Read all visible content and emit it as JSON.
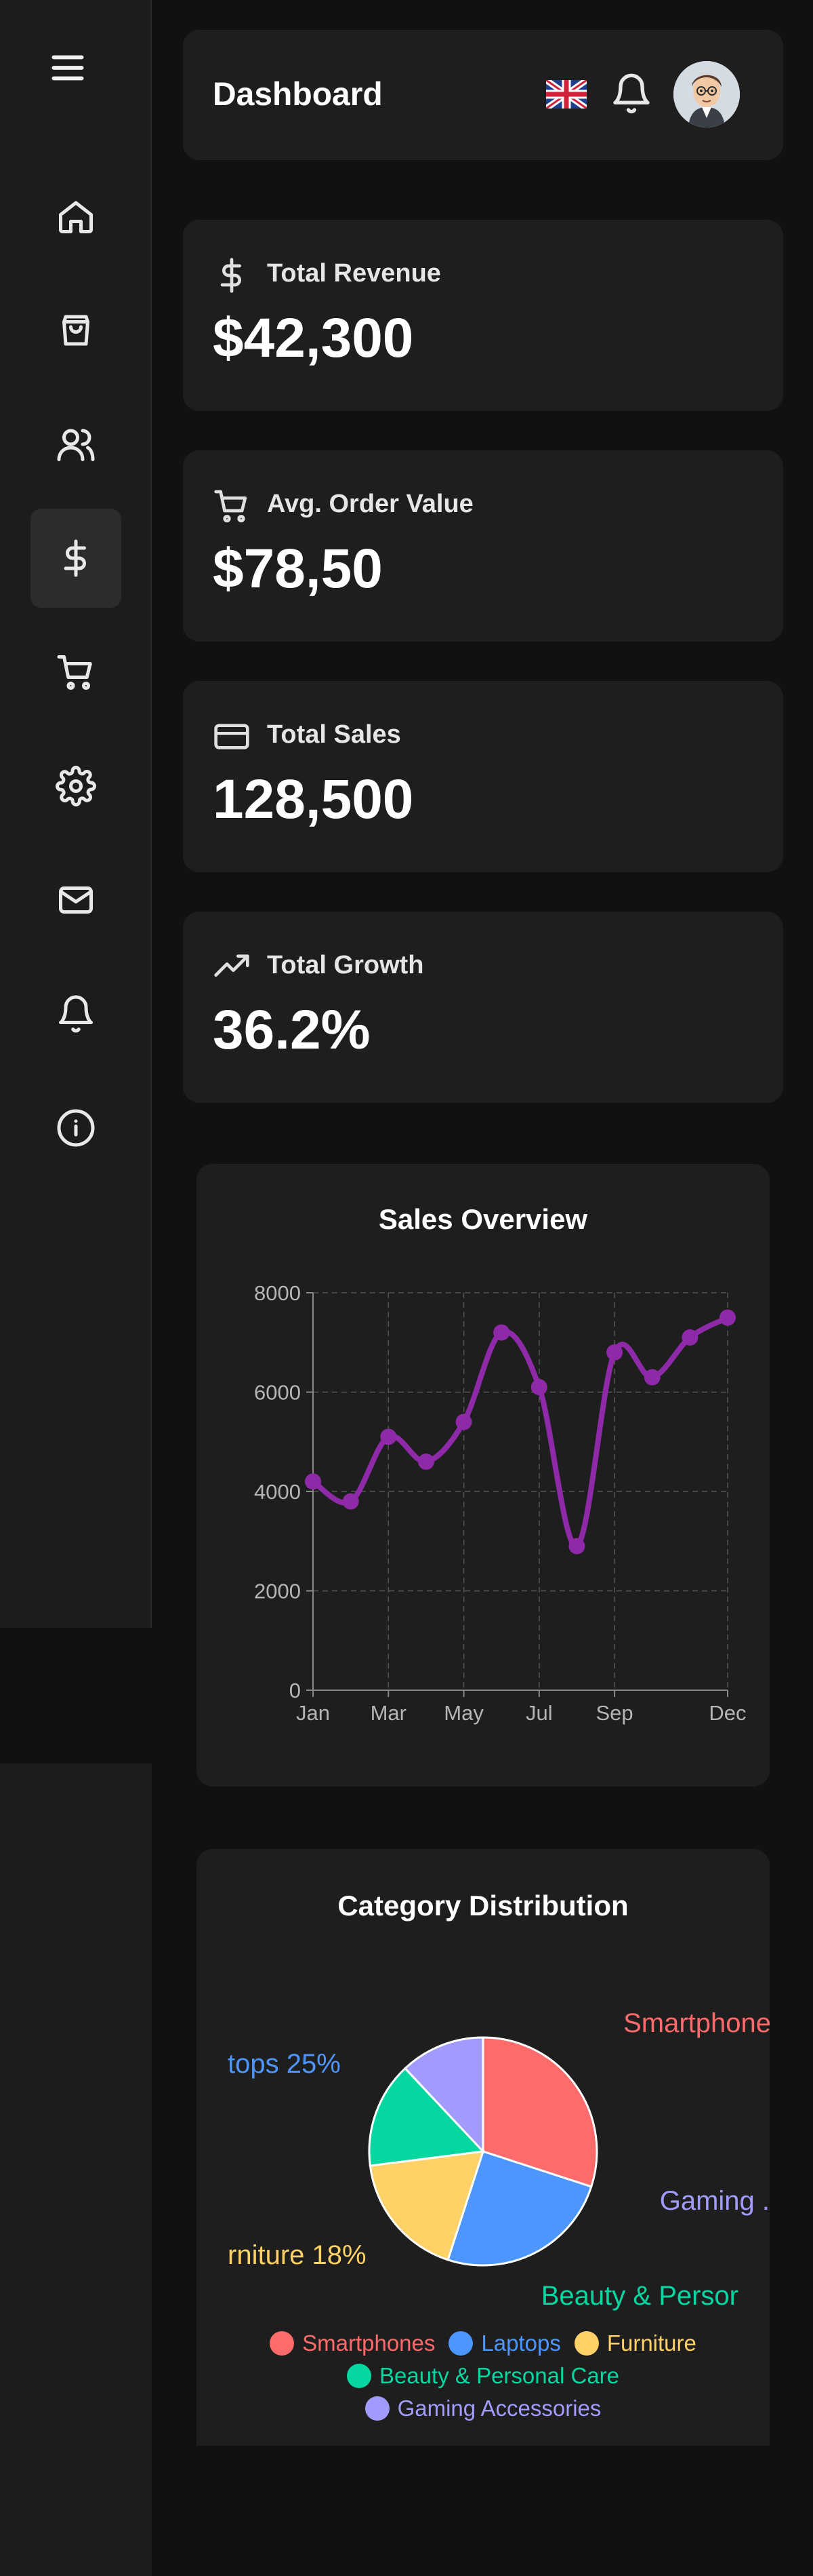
{
  "header": {
    "title": "Dashboard",
    "flag_icon": "uk-flag-icon",
    "bell_icon": "bell-icon",
    "avatar_icon": "avatar"
  },
  "sidebar": {
    "items": [
      {
        "icon": "home-icon"
      },
      {
        "icon": "shopping-bag-icon"
      },
      {
        "icon": "users-icon"
      },
      {
        "icon": "dollar-icon",
        "active": true
      },
      {
        "icon": "cart-icon"
      },
      {
        "icon": "settings-icon"
      },
      {
        "icon": "mail-icon"
      },
      {
        "icon": "bell-icon"
      },
      {
        "icon": "info-icon"
      }
    ]
  },
  "stats": [
    {
      "label": "Total Revenue",
      "value": "$42,300",
      "icon": "dollar-icon"
    },
    {
      "label": "Avg. Order Value",
      "value": "$78,50",
      "icon": "cart-icon"
    },
    {
      "label": "Total Sales",
      "value": "128,500",
      "icon": "credit-card-icon"
    },
    {
      "label": "Total Growth",
      "value": "36.2%",
      "icon": "trending-up-icon"
    }
  ],
  "sales_overview": {
    "title": "Sales Overview",
    "chart_data": {
      "type": "line",
      "x": [
        "Jan",
        "Feb",
        "Mar",
        "Apr",
        "May",
        "Jun",
        "Jul",
        "Aug",
        "Sep",
        "Oct",
        "Nov",
        "Dec"
      ],
      "y": [
        4200,
        3800,
        5100,
        4600,
        5400,
        7200,
        6100,
        2900,
        6800,
        6300,
        7100,
        7500
      ],
      "xticks": [
        "Jan",
        "Mar",
        "May",
        "Jul",
        "Sep",
        "Dec"
      ],
      "yticks": [
        "0",
        "2000",
        "4000",
        "6000",
        "8000"
      ],
      "ylim": [
        0,
        8000
      ],
      "grid": true,
      "color": "#8e2aa8"
    }
  },
  "category_distribution": {
    "title": "Category Distribution",
    "chart_data": {
      "type": "pie",
      "categories": [
        "Smartphones",
        "Laptops",
        "Furniture",
        "Beauty & Personal Care",
        "Gaming Accessories"
      ],
      "values": [
        30,
        25,
        18,
        15,
        12
      ],
      "colors": [
        "#ff6b6b",
        "#4d96ff",
        "#ffd166",
        "#06d6a0",
        "#a29bfe"
      ],
      "slice_labels": [
        "Smartphone",
        "tops 25%",
        "rniture 18%",
        "Beauty & Persor",
        "Gaming ."
      ]
    },
    "legend_rows": [
      [
        "Smartphones",
        "Laptops",
        "Furniture"
      ],
      [
        "Beauty & Personal Care"
      ],
      [
        "Gaming Accessories"
      ]
    ]
  }
}
